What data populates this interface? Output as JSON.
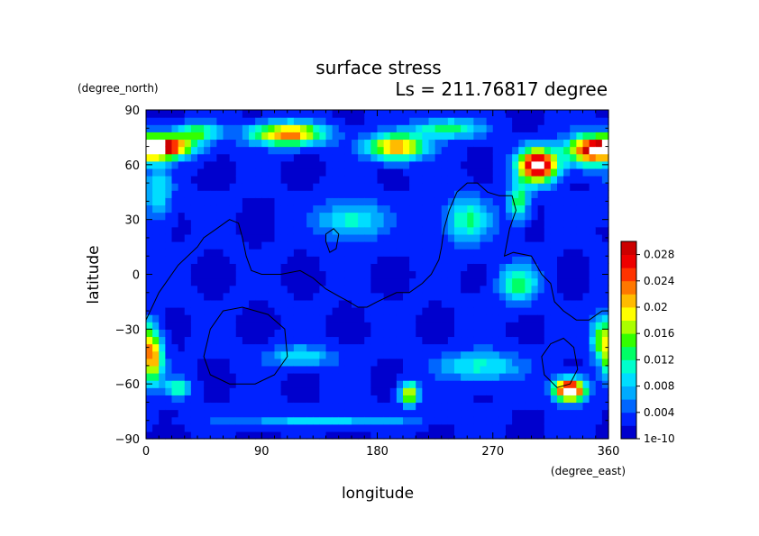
{
  "chart_data": {
    "type": "heatmap",
    "title": "surface stress",
    "subtitle": "Ls = 211.76817 degree",
    "xlabel": "longitude",
    "ylabel": "latitude",
    "x_units": "(degree_east)",
    "y_units": "(degree_north)",
    "xlim": [
      0,
      360
    ],
    "ylim": [
      -90,
      90
    ],
    "x_ticks": [
      0,
      90,
      180,
      270,
      360
    ],
    "y_ticks": [
      -90,
      -60,
      -30,
      0,
      30,
      60,
      90
    ],
    "colorbar": {
      "range": [
        0,
        0.03
      ],
      "tick_values": [
        0,
        0.004,
        0.008,
        0.012,
        0.016,
        0.02,
        0.024,
        0.028
      ],
      "tick_labels": [
        "1e-10",
        "0.004",
        "0.008",
        "0.012",
        "0.016",
        "0.02",
        "0.024",
        "0.028"
      ],
      "colors": [
        "#0000cd",
        "#0022ff",
        "#0066ff",
        "#00aaff",
        "#00ddff",
        "#00ffcc",
        "#00ff66",
        "#33ff00",
        "#aaff00",
        "#ffff00",
        "#ffbb00",
        "#ff7700",
        "#ff3300",
        "#ee0000",
        "#cc0000"
      ]
    },
    "background_level": 0.0015,
    "hotspots": [
      {
        "lon": 12,
        "lat": 70,
        "value": 0.031,
        "spread_lon": 22,
        "spread_lat": 6
      },
      {
        "lon": 40,
        "lat": 78,
        "value": 0.012,
        "spread_lon": 18,
        "spread_lat": 5
      },
      {
        "lon": 110,
        "lat": 77,
        "value": 0.022,
        "spread_lon": 28,
        "spread_lat": 6
      },
      {
        "lon": 195,
        "lat": 70,
        "value": 0.021,
        "spread_lon": 22,
        "spread_lat": 7
      },
      {
        "lon": 235,
        "lat": 80,
        "value": 0.012,
        "spread_lon": 25,
        "spread_lat": 5
      },
      {
        "lon": 305,
        "lat": 60,
        "value": 0.031,
        "spread_lon": 15,
        "spread_lat": 9
      },
      {
        "lon": 345,
        "lat": 68,
        "value": 0.022,
        "spread_lon": 18,
        "spread_lat": 8
      },
      {
        "lon": 290,
        "lat": 40,
        "value": 0.012,
        "spread_lon": 8,
        "spread_lat": 10
      },
      {
        "lon": 5,
        "lat": -45,
        "value": 0.02,
        "spread_lon": 8,
        "spread_lat": 14
      },
      {
        "lon": 25,
        "lat": -62,
        "value": 0.01,
        "spread_lon": 10,
        "spread_lat": 5
      },
      {
        "lon": 205,
        "lat": -65,
        "value": 0.018,
        "spread_lon": 7,
        "spread_lat": 6
      },
      {
        "lon": 330,
        "lat": -63,
        "value": 0.031,
        "spread_lon": 12,
        "spread_lat": 6
      },
      {
        "lon": 355,
        "lat": -35,
        "value": 0.014,
        "spread_lon": 8,
        "spread_lat": 12
      },
      {
        "lon": 290,
        "lat": -5,
        "value": 0.011,
        "spread_lon": 15,
        "spread_lat": 10
      },
      {
        "lon": 260,
        "lat": -50,
        "value": 0.009,
        "spread_lon": 30,
        "spread_lat": 8
      },
      {
        "lon": 250,
        "lat": 30,
        "value": 0.01,
        "spread_lon": 18,
        "spread_lat": 12
      },
      {
        "lon": 160,
        "lat": 30,
        "value": 0.009,
        "spread_lon": 25,
        "spread_lat": 10
      },
      {
        "lon": 120,
        "lat": -45,
        "value": 0.008,
        "spread_lon": 25,
        "spread_lat": 6
      },
      {
        "lon": 140,
        "lat": -80,
        "value": 0.007,
        "spread_lon": 70,
        "spread_lat": 3
      },
      {
        "lon": 10,
        "lat": 45,
        "value": 0.008,
        "spread_lon": 10,
        "spread_lat": 15
      }
    ],
    "contour_lines": [
      {
        "name": "",
        "closed": false,
        "points": [
          [
            0,
            -25
          ],
          [
            10,
            -10
          ],
          [
            25,
            5
          ],
          [
            40,
            15
          ],
          [
            45,
            20
          ],
          [
            55,
            25
          ],
          [
            65,
            30
          ],
          [
            72,
            28
          ],
          [
            75,
            20
          ],
          [
            78,
            10
          ],
          [
            82,
            2
          ],
          [
            90,
            0
          ],
          [
            105,
            0
          ],
          [
            120,
            2
          ],
          [
            130,
            -2
          ],
          [
            140,
            -8
          ],
          [
            150,
            -12
          ],
          [
            158,
            -15
          ],
          [
            165,
            -18
          ],
          [
            172,
            -18
          ],
          [
            180,
            -15
          ],
          [
            195,
            -10
          ],
          [
            205,
            -10
          ],
          [
            215,
            -5
          ],
          [
            222,
            0
          ],
          [
            228,
            8
          ],
          [
            230,
            15
          ],
          [
            232,
            25
          ],
          [
            236,
            35
          ],
          [
            242,
            45
          ],
          [
            250,
            50
          ],
          [
            258,
            50
          ],
          [
            266,
            45
          ],
          [
            275,
            43
          ],
          [
            285,
            43
          ],
          [
            288,
            35
          ],
          [
            283,
            25
          ],
          [
            279,
            10
          ],
          [
            286,
            12
          ],
          [
            300,
            10
          ],
          [
            308,
            0
          ],
          [
            315,
            -5
          ],
          [
            318,
            -15
          ],
          [
            325,
            -20
          ],
          [
            335,
            -25
          ],
          [
            345,
            -25
          ],
          [
            355,
            -20
          ],
          [
            360,
            -20
          ]
        ]
      },
      {
        "name": "",
        "closed": true,
        "points": [
          [
            140,
            22
          ],
          [
            146,
            25
          ],
          [
            150,
            22
          ],
          [
            148,
            14
          ],
          [
            143,
            12
          ],
          [
            140,
            18
          ]
        ]
      },
      {
        "name": "",
        "closed": true,
        "points": [
          [
            45,
            -45
          ],
          [
            50,
            -30
          ],
          [
            60,
            -20
          ],
          [
            75,
            -18
          ],
          [
            95,
            -22
          ],
          [
            108,
            -30
          ],
          [
            110,
            -45
          ],
          [
            100,
            -55
          ],
          [
            85,
            -60
          ],
          [
            65,
            -60
          ],
          [
            50,
            -55
          ]
        ]
      },
      {
        "name": "",
        "closed": true,
        "points": [
          [
            308,
            -45
          ],
          [
            315,
            -38
          ],
          [
            325,
            -35
          ],
          [
            333,
            -40
          ],
          [
            336,
            -52
          ],
          [
            330,
            -60
          ],
          [
            320,
            -62
          ],
          [
            310,
            -55
          ]
        ]
      }
    ]
  }
}
